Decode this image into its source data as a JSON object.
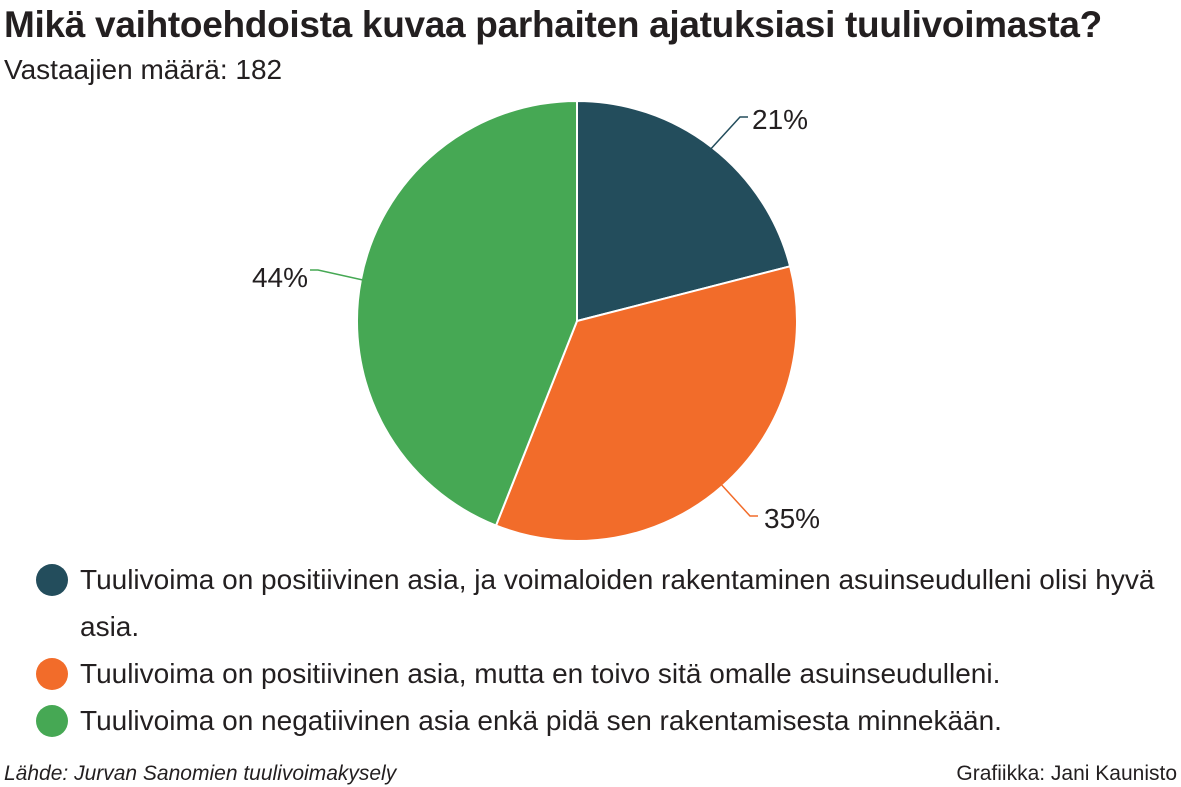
{
  "header": {
    "title": "Mikä vaihtoehdoista kuvaa parhaiten ajatuksiasi tuulivoimasta?",
    "subtitle": "Vastaajien määrä: 182"
  },
  "chart_data": {
    "type": "pie",
    "title": "Mikä vaihtoehdoista kuvaa parhaiten ajatuksiasi tuulivoimasta?",
    "subtitle": "Vastaajien määrä: 182",
    "categories": [
      "Tuulivoima on positiivinen asia, ja voimaloiden rakentaminen asuinseudulleni olisi hyvä asia.",
      "Tuulivoima on positiivinen asia, mutta en toivo sitä omalle asuinseudulleni.",
      "Tuulivoima on negatiivinen asia enkä pidä sen rakentamisesta minnekään."
    ],
    "values": [
      21,
      35,
      44
    ],
    "labels": [
      "21%",
      "35%",
      "44%"
    ],
    "colors": [
      "#234d5c",
      "#f26c2a",
      "#46a854"
    ],
    "legend_position": "bottom"
  },
  "legend": {
    "items": [
      {
        "label": "Tuulivoima on positiivinen asia, ja voimaloiden rakentaminen asuinseudulleni olisi hyvä asia.",
        "color": "#234d5c"
      },
      {
        "label": "Tuulivoima on positiivinen asia, mutta en toivo sitä omalle asuinseudulleni.",
        "color": "#f26c2a"
      },
      {
        "label": "Tuulivoima on negatiivinen asia enkä pidä sen rakentamisesta minnekään.",
        "color": "#46a854"
      }
    ]
  },
  "footer": {
    "source": "Lähde: Jurvan Sanomien tuulivoimakysely",
    "credit": "Grafiikka: Jani Kaunisto"
  }
}
